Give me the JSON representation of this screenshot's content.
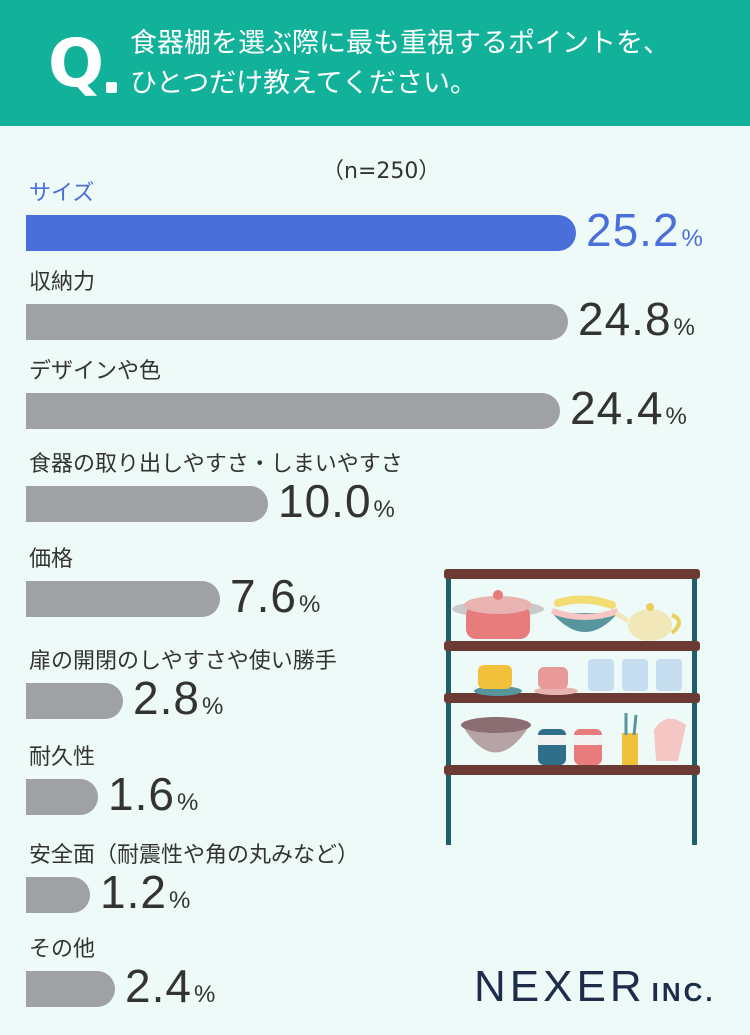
{
  "header": {
    "q_mark": "Q",
    "question_line1": "食器棚を選ぶ際に最も重視するポイントを、",
    "question_line2": "ひとつだけ教えてください。"
  },
  "sample_size": "（n=250）",
  "chart_data": {
    "type": "bar",
    "orientation": "horizontal",
    "categories": [
      "サイズ",
      "収納力",
      "デザインや色",
      "食器の取り出しやすさ・しまいやすさ",
      "価格",
      "扉の開閉のしやすさや使い勝手",
      "耐久性",
      "安全面（耐震性や角の丸みなど）",
      "その他"
    ],
    "values": [
      25.2,
      24.8,
      24.4,
      10.0,
      7.6,
      2.8,
      1.6,
      1.2,
      2.4
    ],
    "value_labels": [
      "25.2",
      "24.8",
      "24.4",
      "10.0",
      "7.6",
      "2.8",
      "1.6",
      "1.2",
      "2.4"
    ],
    "unit": "%",
    "highlight_index": 0,
    "colors": {
      "highlight": "#4a6fdb",
      "default": "#a0a1a5"
    }
  },
  "logo": {
    "main": "NEXER",
    "sub": "INC."
  },
  "colors": {
    "header": "#12b29a",
    "background": "#eefaf7",
    "text": "#333333",
    "logo": "#1d2c4c"
  }
}
